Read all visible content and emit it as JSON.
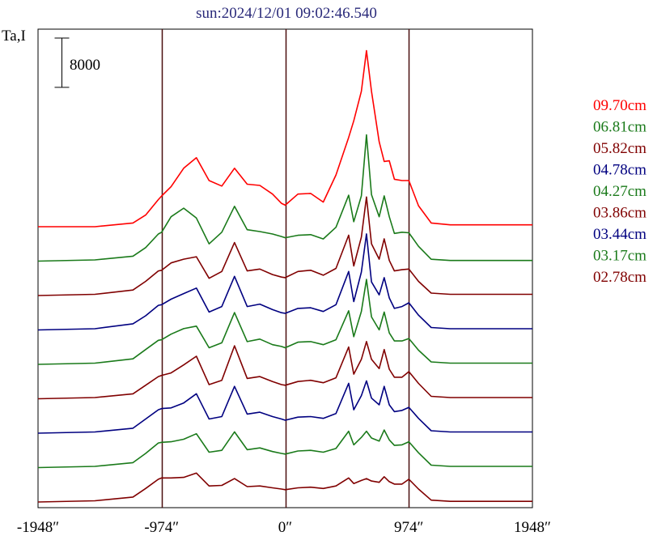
{
  "chart_data": {
    "type": "line",
    "title": "sun:2024/12/01 09:02:46.540",
    "ylabel": "Ta,I",
    "scale_bar_label": "8000",
    "x_tick_labels": [
      "-1948″",
      "-974″",
      "0″",
      "974″",
      "1948″"
    ],
    "x_ticks": [
      -1948,
      -974,
      0,
      974,
      1948
    ],
    "xlim": [
      -1948,
      1948
    ],
    "vertical_lines_at": [
      -974,
      0,
      974
    ],
    "grid": false,
    "legend_placement": "right",
    "x_samples": [
      -1948,
      -1500,
      -1200,
      -1100,
      -1000,
      -974,
      -900,
      -800,
      -700,
      -600,
      -500,
      -400,
      -300,
      -200,
      -100,
      -30,
      0,
      100,
      200,
      300,
      400,
      500,
      540,
      600,
      640,
      680,
      740,
      780,
      820,
      860,
      920,
      974,
      1050,
      1150,
      1300,
      1948
    ],
    "series": [
      {
        "name": "09.70cm",
        "color": "#ff0000",
        "values": [
          0,
          0,
          600,
          1900,
          4400,
          5000,
          6500,
          9500,
          11200,
          7500,
          6600,
          9500,
          6900,
          6700,
          5300,
          3800,
          3500,
          5300,
          5400,
          4000,
          8400,
          14500,
          17200,
          22000,
          28600,
          22000,
          13800,
          10600,
          10700,
          7700,
          7500,
          7500,
          3400,
          600,
          300,
          300
        ]
      },
      {
        "name": "06.81cm",
        "color": "#1a7a1a",
        "values": [
          0,
          200,
          800,
          2200,
          4400,
          4700,
          7200,
          8600,
          7000,
          2800,
          4700,
          8900,
          5100,
          4800,
          4400,
          4000,
          3800,
          4200,
          4300,
          3600,
          5500,
          10700,
          6400,
          10600,
          20500,
          10800,
          7200,
          10600,
          7200,
          4500,
          4700,
          4600,
          2400,
          300,
          100,
          100
        ]
      },
      {
        "name": "05.82cm",
        "color": "#800000",
        "values": [
          0,
          200,
          900,
          2300,
          4000,
          4100,
          5300,
          5900,
          6300,
          2800,
          3900,
          8600,
          4000,
          4300,
          3400,
          3000,
          2900,
          3900,
          4100,
          3300,
          4400,
          9800,
          4800,
          9500,
          16000,
          8400,
          5900,
          9200,
          5700,
          4000,
          4200,
          4300,
          2300,
          400,
          200,
          200
        ]
      },
      {
        "name": "04.78cm",
        "color": "#000080",
        "values": [
          0,
          200,
          1000,
          2300,
          4000,
          4100,
          5000,
          5900,
          6800,
          2900,
          3800,
          8700,
          3800,
          4200,
          3300,
          2800,
          2700,
          3500,
          3600,
          3000,
          4100,
          9500,
          4600,
          9400,
          15600,
          7800,
          5700,
          8500,
          5200,
          3500,
          3800,
          4400,
          2400,
          400,
          200,
          200
        ]
      },
      {
        "name": "04.27cm",
        "color": "#1a7a1a",
        "values": [
          0,
          200,
          900,
          2400,
          3900,
          4000,
          4900,
          5800,
          6200,
          2700,
          3500,
          8400,
          3700,
          4100,
          3200,
          2900,
          2700,
          3600,
          3700,
          3200,
          4000,
          8700,
          4500,
          8600,
          13800,
          7700,
          5600,
          8500,
          5100,
          3800,
          3800,
          4200,
          2300,
          400,
          200,
          200
        ]
      },
      {
        "name": "03.86cm",
        "color": "#800000",
        "values": [
          0,
          200,
          800,
          2200,
          3600,
          3800,
          4200,
          5500,
          6900,
          2300,
          3000,
          8600,
          3300,
          3600,
          2800,
          2300,
          2200,
          2800,
          3000,
          2600,
          3400,
          8400,
          4000,
          6400,
          9300,
          6400,
          4900,
          8000,
          4800,
          3500,
          3500,
          4400,
          2500,
          400,
          200,
          200
        ]
      },
      {
        "name": "03.44cm",
        "color": "#000080",
        "values": [
          0,
          200,
          800,
          2300,
          3800,
          4000,
          4100,
          4900,
          6400,
          2300,
          2700,
          7600,
          3100,
          3400,
          2700,
          2300,
          2100,
          2600,
          2700,
          2400,
          3200,
          8100,
          3800,
          6100,
          8500,
          5700,
          4600,
          7600,
          4600,
          3500,
          3700,
          4200,
          2400,
          400,
          200,
          200
        ]
      },
      {
        "name": "03.17cm",
        "color": "#1a7a1a",
        "values": [
          0,
          200,
          800,
          2300,
          4000,
          4100,
          4200,
          4600,
          5500,
          2500,
          2800,
          5800,
          2900,
          3200,
          2600,
          2300,
          2200,
          2700,
          2800,
          2500,
          3100,
          5900,
          3700,
          4900,
          5900,
          4800,
          4300,
          6100,
          4500,
          3600,
          3700,
          4200,
          2400,
          400,
          200,
          200
        ]
      },
      {
        "name": "02.78cm",
        "color": "#800000",
        "values": [
          0,
          200,
          800,
          2200,
          3700,
          3900,
          3900,
          4000,
          4700,
          2600,
          2700,
          3800,
          2500,
          2600,
          2300,
          2100,
          2000,
          2300,
          2400,
          2200,
          2600,
          3900,
          3000,
          3500,
          3800,
          3400,
          3200,
          4100,
          3300,
          2900,
          2900,
          3700,
          2100,
          300,
          100,
          100
        ]
      }
    ]
  }
}
